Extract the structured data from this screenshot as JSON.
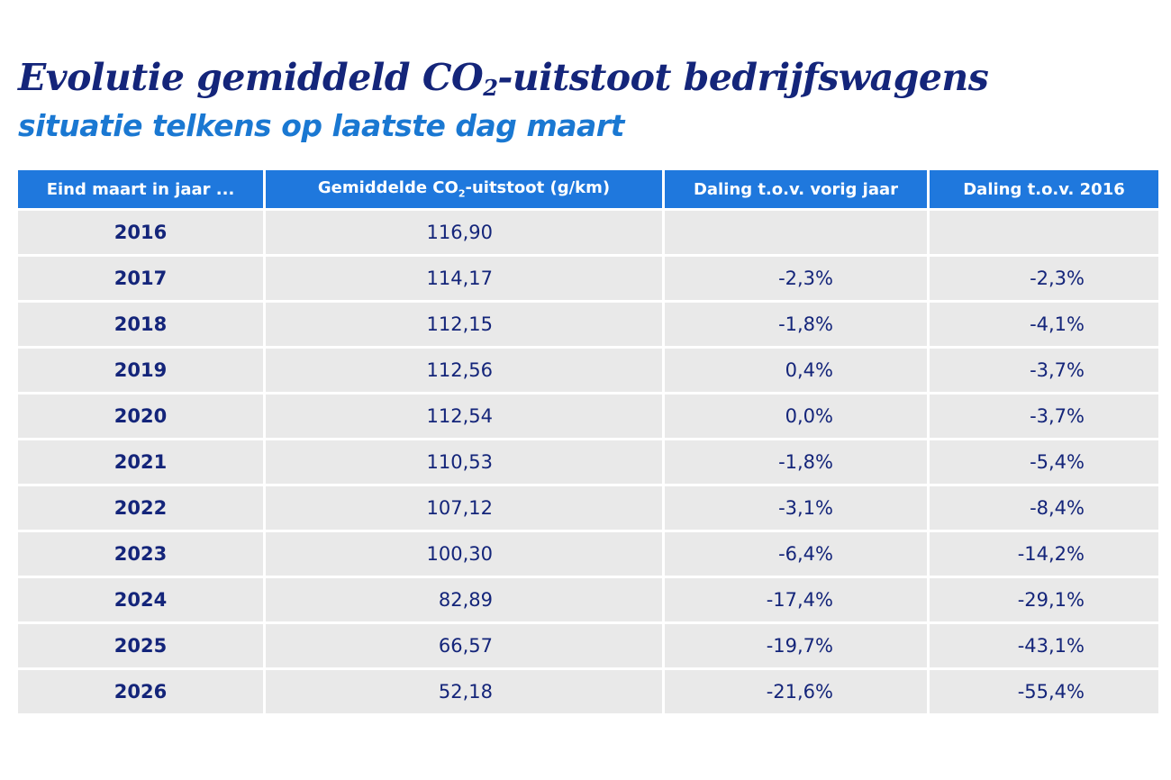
{
  "title": {
    "before": "Evolutie gemiddeld CO",
    "sub": "2",
    "after": "-uitstoot bedrijfswagens"
  },
  "subtitle": "situatie telkens op laatste dag maart",
  "table": {
    "headers": {
      "year": "Eind maart in jaar ...",
      "avg_before": "Gemiddelde CO",
      "avg_sub": "2",
      "avg_after": "-uitstoot (g/km)",
      "prev": "Daling t.o.v. vorig jaar",
      "base": "Daling t.o.v. 2016"
    },
    "rows": [
      {
        "year": "2016",
        "avg": "116,90",
        "prev": "",
        "base": ""
      },
      {
        "year": "2017",
        "avg": "114,17",
        "prev": "-2,3%",
        "base": "-2,3%"
      },
      {
        "year": "2018",
        "avg": "112,15",
        "prev": "-1,8%",
        "base": "-4,1%"
      },
      {
        "year": "2019",
        "avg": "112,56",
        "prev": "0,4%",
        "base": "-3,7%"
      },
      {
        "year": "2020",
        "avg": "112,54",
        "prev": "0,0%",
        "base": "-3,7%"
      },
      {
        "year": "2021",
        "avg": "110,53",
        "prev": "-1,8%",
        "base": "-5,4%"
      },
      {
        "year": "2022",
        "avg": "107,12",
        "prev": "-3,1%",
        "base": "-8,4%"
      },
      {
        "year": "2023",
        "avg": "100,30",
        "prev": "-6,4%",
        "base": "-14,2%"
      },
      {
        "year": "2024",
        "avg": "82,89",
        "prev": "-17,4%",
        "base": "-29,1%"
      },
      {
        "year": "2025",
        "avg": "66,57",
        "prev": "-19,7%",
        "base": "-43,1%"
      },
      {
        "year": "2026",
        "avg": "52,18",
        "prev": "-21,6%",
        "base": "-55,4%"
      }
    ]
  },
  "colors": {
    "title": "#14257a",
    "subtitle": "#1a78d2",
    "header_bg": "#1f78dd",
    "cell_bg": "#e9e9e9"
  }
}
